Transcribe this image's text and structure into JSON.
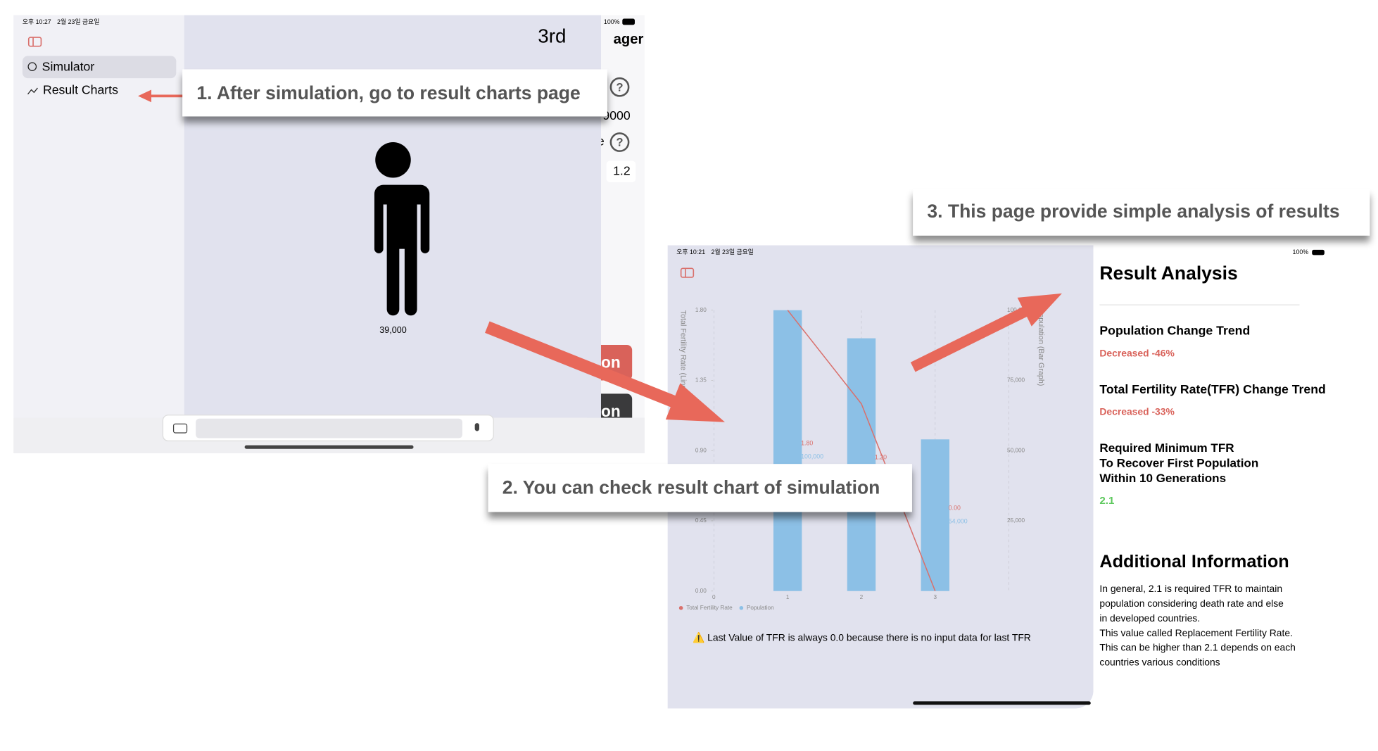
{
  "left_screen": {
    "status_time": "오후 10:27",
    "status_date": "2월 23일 금요일",
    "battery": "100%",
    "sidebar": [
      "Simulator",
      "Result Charts"
    ],
    "header": "3rd",
    "partial_title": "ager",
    "partial_value": "9000",
    "partial_letter": "e",
    "partial_input": "1.2",
    "partial_buttons": [
      "on",
      "on"
    ],
    "population": "39,000"
  },
  "callouts": [
    "1. After simulation, go to result charts page",
    "2. You can check result chart of simulation",
    "3. This page provide simple analysis of results"
  ],
  "right_screen": {
    "status_time": "오후 10:21",
    "status_date": "2월 23일 금요일",
    "battery": "100%",
    "chart": {
      "type": "bar",
      "x": [
        1,
        2,
        3
      ],
      "xlim": [
        0,
        4
      ],
      "xticks": [
        0,
        1,
        2,
        3
      ],
      "ylabel": "Total Fertility Rate (Line Graph)",
      "y2label": "Population (Bar Graph)",
      "ylim": [
        0,
        1.8
      ],
      "yticks": [
        {
          "value": 0,
          "label": "0.00"
        },
        0.45,
        {
          "value": 0.9,
          "label": "0.90"
        },
        1.35,
        {
          "value": 1.8,
          "label": "1.80"
        }
      ],
      "y2lim": [
        0,
        100000
      ],
      "y2ticks": [
        {
          "value": 25000,
          "label": "25,000"
        },
        {
          "value": 50000,
          "label": "50,000"
        },
        {
          "value": 75000,
          "label": "75,000"
        },
        {
          "value": 100000,
          "label": "100,000"
        }
      ],
      "series": [
        {
          "name": "Total Fertility Rate",
          "type": "line",
          "color": "#d9706c",
          "values": [
            1.8,
            1.2,
            0
          ],
          "value_labels": [
            "1.80",
            "1.20",
            "0.00"
          ]
        },
        {
          "name": "Population",
          "type": "bar",
          "axis": "y2",
          "color": "#8cc0e6",
          "values": [
            100000,
            90000,
            54000
          ],
          "value_labels": [
            "100,000",
            null,
            "54,000"
          ]
        }
      ]
    },
    "note": "⚠️ Last Value of TFR is always 0.0 because there is no input data for last TFR",
    "analysis": {
      "title": "Result Analysis",
      "population_heading": "Population Change Trend",
      "population_result": "Decreased -46%",
      "tfr_heading": "Total Fertility Rate(TFR) Change Trend",
      "tfr_result": "Decreased -33%",
      "required_heading": [
        "Required Minimum TFR",
        "To Recover First Population",
        "Within 10 Generations"
      ],
      "required_value": "2.1",
      "additional_title": "Additional Information",
      "additional_text": [
        "In general, 2.1 is required TFR to maintain",
        "population considering death rate and else",
        "in developed countries.",
        "This value called Replacement Fertility Rate.",
        "This can be higher than 2.1 depends on each",
        "countries various conditions"
      ]
    }
  }
}
